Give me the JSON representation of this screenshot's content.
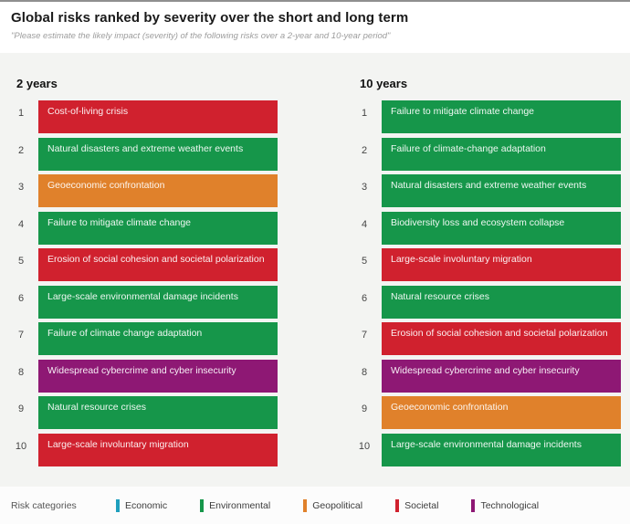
{
  "header": {
    "title": "Global risks ranked by severity over the short and long term",
    "subtitle": "\"Please estimate the likely impact (severity) of the following risks over a 2-year and 10-year period\""
  },
  "colors": {
    "economic": "#1F9FBD",
    "environmental": "#16964A",
    "geopolitical": "#E0812B",
    "societal": "#D0212E",
    "technological": "#8E1874",
    "panel_background": "#F3F4F2"
  },
  "chart_data": {
    "type": "table",
    "title": "Global risks ranked by severity over the short and long term",
    "subtitle": "\"Please estimate the likely impact (severity) of the following risks over a 2-year and 10-year period\"",
    "legend_position": "bottom",
    "columns": [
      {
        "label": "2 years",
        "ranks": [
          {
            "rank": 1,
            "risk": "Cost-of-living crisis",
            "category": "societal"
          },
          {
            "rank": 2,
            "risk": "Natural disasters and extreme weather events",
            "category": "environmental"
          },
          {
            "rank": 3,
            "risk": "Geoeconomic confrontation",
            "category": "geopolitical"
          },
          {
            "rank": 4,
            "risk": "Failure to mitigate climate change",
            "category": "environmental"
          },
          {
            "rank": 5,
            "risk": "Erosion of social cohesion and societal polarization",
            "category": "societal"
          },
          {
            "rank": 6,
            "risk": "Large-scale environmental damage incidents",
            "category": "environmental"
          },
          {
            "rank": 7,
            "risk": "Failure of climate change adaptation",
            "category": "environmental"
          },
          {
            "rank": 8,
            "risk": "Widespread cybercrime and cyber insecurity",
            "category": "technological"
          },
          {
            "rank": 9,
            "risk": "Natural resource crises",
            "category": "environmental"
          },
          {
            "rank": 10,
            "risk": "Large-scale involuntary migration",
            "category": "societal"
          }
        ]
      },
      {
        "label": "10 years",
        "ranks": [
          {
            "rank": 1,
            "risk": "Failure to mitigate climate change",
            "category": "environmental"
          },
          {
            "rank": 2,
            "risk": "Failure of climate-change adaptation",
            "category": "environmental"
          },
          {
            "rank": 3,
            "risk": "Natural disasters and extreme weather events",
            "category": "environmental"
          },
          {
            "rank": 4,
            "risk": "Biodiversity loss and ecosystem collapse",
            "category": "environmental"
          },
          {
            "rank": 5,
            "risk": "Large-scale involuntary migration",
            "category": "societal"
          },
          {
            "rank": 6,
            "risk": "Natural resource crises",
            "category": "environmental"
          },
          {
            "rank": 7,
            "risk": "Erosion of social cohesion and societal polarization",
            "category": "societal"
          },
          {
            "rank": 8,
            "risk": "Widespread cybercrime and cyber insecurity",
            "category": "technological"
          },
          {
            "rank": 9,
            "risk": "Geoeconomic confrontation",
            "category": "geopolitical"
          },
          {
            "rank": 10,
            "risk": "Large-scale environmental damage incidents",
            "category": "environmental"
          }
        ]
      }
    ]
  },
  "legend": {
    "label": "Risk categories",
    "items": [
      {
        "label": "Economic",
        "category": "economic"
      },
      {
        "label": "Environmental",
        "category": "environmental"
      },
      {
        "label": "Geopolitical",
        "category": "geopolitical"
      },
      {
        "label": "Societal",
        "category": "societal"
      },
      {
        "label": "Technological",
        "category": "technological"
      }
    ]
  }
}
